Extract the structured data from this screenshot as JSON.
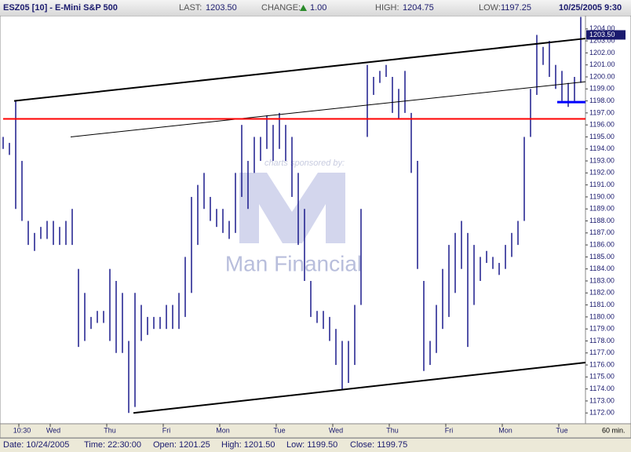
{
  "header": {
    "symbol": "ESZ05 [10] - E-Mini S&P 500",
    "last_label": "LAST:",
    "last": "1203.50",
    "change_label": "CHANGE:",
    "change": "1.00",
    "high_label": "HIGH:",
    "high": "1204.75",
    "low_label": "LOW:",
    "low": "1197.25",
    "datetime": "10/25/2005 9:30"
  },
  "status": {
    "date": "Date: 10/24/2005",
    "time": "Time: 22:30:00",
    "open": "Open: 1201.25",
    "high": "High: 1201.50",
    "low": "Low: 1199.50",
    "close": "Close: 1199.75"
  },
  "chart_data": {
    "type": "ohlc",
    "interval": "60 min.",
    "watermark": "Man Financial",
    "watermark_sub": "charts sponsored by:",
    "categories": [
      null,
      null,
      null,
      "10:30",
      null,
      null,
      null,
      null,
      "Wed",
      null,
      null,
      null,
      null,
      null,
      null,
      null,
      null,
      "Thu",
      null,
      null,
      null,
      null,
      null,
      null,
      null,
      null,
      "Fri",
      null,
      null,
      null,
      null,
      null,
      null,
      null,
      null,
      "Mon",
      null,
      null,
      null,
      null,
      null,
      null,
      null,
      null,
      "Tue",
      null,
      null,
      null,
      null,
      null,
      null,
      null,
      null,
      "Wed",
      null,
      null,
      null,
      null,
      null,
      null,
      null,
      null,
      "Thu",
      null,
      null,
      null,
      null,
      null,
      null,
      null,
      null,
      "Fri",
      null,
      null,
      null,
      null,
      null,
      null,
      null,
      null,
      "Mon",
      null,
      null,
      null,
      null,
      null,
      null,
      null,
      null,
      "Tue",
      null,
      null,
      null
    ],
    "series": [
      {
        "color": "#1a1a8c",
        "high": [
          1195,
          1194.5,
          1198,
          1193,
          1188,
          1187,
          1187.5,
          1188,
          1188,
          1187.5,
          1188,
          1189,
          1184,
          1182,
          1180,
          1180.5,
          1180.5,
          1184,
          1183,
          1182,
          1178,
          1182,
          1181,
          1180,
          1180,
          1180,
          1181,
          1181,
          1182,
          1185,
          1190,
          1191,
          1192,
          1190,
          1189,
          1189,
          1188,
          1192,
          1196,
          1193,
          1195,
          1195,
          1196.8,
          1196,
          1197,
          1196,
          1195,
          1192,
          1189,
          1183,
          1180.5,
          1180.5,
          1180,
          1179,
          1178,
          1178,
          1181,
          1189,
          1201,
          1200,
          1200.5,
          1201,
          1200,
          1199,
          1200.5,
          1197,
          1193,
          1183,
          1178,
          1181,
          1184,
          1186,
          1187,
          1188,
          1187,
          1186,
          1185,
          1185.5,
          1185,
          1184.5,
          1186,
          1187,
          1188,
          1195,
          1199,
          1203.5,
          1202.5,
          1203,
          1201,
          1200.5,
          1199.5,
          1200,
          1205
        ],
        "low": [
          1194,
          1193.5,
          1189,
          1188,
          1186,
          1185.5,
          1186.5,
          1186.5,
          1186,
          1186,
          1186,
          1186,
          1177.5,
          1178,
          1179,
          1179.5,
          1179.5,
          1178,
          1177,
          1177,
          1172,
          1172.5,
          1178,
          1178.5,
          1179,
          1179,
          1179,
          1179,
          1179,
          1180,
          1182,
          1186,
          1189,
          1188,
          1187.5,
          1187,
          1186.5,
          1187,
          1190,
          1189,
          1192,
          1193,
          1194,
          1193,
          1194,
          1193,
          1190,
          1186,
          1183,
          1180,
          1179.5,
          1179,
          1178,
          1176,
          1174,
          1174.5,
          1176,
          1181,
          1195,
          1198.5,
          1199.5,
          1200,
          1197,
          1196.5,
          1197,
          1192,
          1184,
          1175.5,
          1176,
          1177,
          1179,
          1180,
          1182,
          1184,
          1177.5,
          1181,
          1183,
          1184.5,
          1184,
          1183.5,
          1184,
          1185,
          1186,
          1188,
          1195,
          1198.5,
          1201,
          1200,
          1199,
          1198,
          1197.5,
          1198,
          1199.5
        ]
      }
    ],
    "trendlines": [
      {
        "x": [
          1.75,
          92.75
        ],
        "y": [
          1198,
          1203.2
        ],
        "color": "#000000",
        "width": 2
      },
      {
        "x": [
          20.75,
          92.75
        ],
        "y": [
          1172,
          1176.2
        ],
        "color": "#000000",
        "width": 2
      },
      {
        "x": [
          10.75,
          92.75
        ],
        "y": [
          1195,
          1199.6
        ],
        "color": "#000000",
        "width": 1
      },
      {
        "x": [
          0,
          92.75
        ],
        "y": [
          1196.5,
          1196.5
        ],
        "color": "#ff0000",
        "width": 2
      },
      {
        "x": [
          88.25,
          92.75
        ],
        "y": [
          1197.9,
          1197.9
        ],
        "color": "#0000ff",
        "width": 3
      }
    ],
    "last_marker": {
      "value": 1203.5,
      "label": "1203.50"
    },
    "ylim": [
      1171.1,
      1205.1
    ],
    "yticks": [
      {
        "value": 1172,
        "label": "1172.00"
      },
      {
        "value": 1173,
        "label": "1173.00"
      },
      {
        "value": 1174,
        "label": "1174.00"
      },
      {
        "value": 1175,
        "label": "1175.00"
      },
      {
        "value": 1176,
        "label": "1176.00"
      },
      {
        "value": 1177,
        "label": "1177.00"
      },
      {
        "value": 1178,
        "label": "1178.00"
      },
      {
        "value": 1179,
        "label": "1179.00"
      },
      {
        "value": 1180,
        "label": "1180.00"
      },
      {
        "value": 1181,
        "label": "1181.00"
      },
      {
        "value": 1182,
        "label": "1182.00"
      },
      {
        "value": 1183,
        "label": "1183.00"
      },
      {
        "value": 1184,
        "label": "1184.00"
      },
      {
        "value": 1185,
        "label": "1185.00"
      },
      {
        "value": 1186,
        "label": "1186.00"
      },
      {
        "value": 1187,
        "label": "1187.00"
      },
      {
        "value": 1188,
        "label": "1188.00"
      },
      {
        "value": 1189,
        "label": "1189.00"
      },
      {
        "value": 1190,
        "label": "1190.00"
      },
      {
        "value": 1191,
        "label": "1191.00"
      },
      {
        "value": 1192,
        "label": "1192.00"
      },
      {
        "value": 1193,
        "label": "1193.00"
      },
      {
        "value": 1194,
        "label": "1194.00"
      },
      {
        "value": 1195,
        "label": "1195.00"
      },
      {
        "value": 1196,
        "label": "1196.00"
      },
      {
        "value": 1197,
        "label": "1197.00"
      },
      {
        "value": 1198,
        "label": "1198.00"
      },
      {
        "value": 1199,
        "label": "1199.00"
      },
      {
        "value": 1200,
        "label": "1200.00"
      },
      {
        "value": 1201,
        "label": "1201.00"
      },
      {
        "value": 1202,
        "label": "1202.00"
      },
      {
        "value": 1203,
        "label": "1203.00"
      },
      {
        "value": 1204,
        "label": "1204.00"
      }
    ],
    "grid": false
  }
}
